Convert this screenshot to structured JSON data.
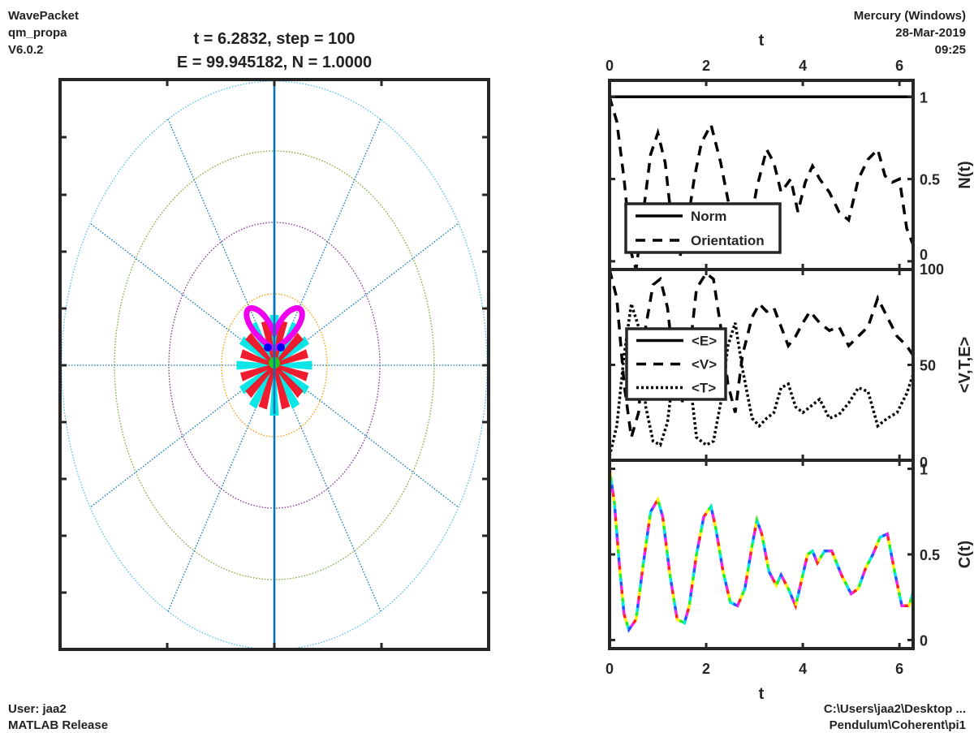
{
  "header": {
    "left": [
      "WavePacket",
      "qm_propa",
      "V6.0.2"
    ],
    "right": [
      "Mercury (Windows)",
      "28-Mar-2019",
      "09:25"
    ],
    "title_line1": "t = 6.2832, step = 100",
    "title_line2": "E = 99.945182, N = 1.0000"
  },
  "footer": {
    "left": [
      "User: jaa2",
      "MATLAB Release"
    ],
    "right": [
      "C:\\Users\\jaa2\\Desktop ...",
      "Pendulum\\Coherent\\pi1"
    ]
  },
  "colors": {
    "ring1": "#ff9900",
    "ring2": "#7e2f8e",
    "ring3": "#77ac30",
    "ring4": "#4dbeee",
    "spokes": "#0072bd",
    "axis_line": "#0072bd",
    "petal_magenta": "#ee00ee",
    "petal_blue": "#0000ee",
    "petal_red": "#ee1122",
    "petal_cyan": "#00e5e5",
    "petal_green": "#22cc22",
    "black": "#000000"
  },
  "chart_data": [
    {
      "type": "polar",
      "description_rings": 4,
      "spokes_deg": [
        0,
        30,
        60,
        90,
        120,
        150,
        180,
        210,
        240,
        270,
        300,
        330
      ],
      "petals": [
        {
          "color": "magenta",
          "angle_deg": [
            60,
            120
          ]
        },
        {
          "color": "red",
          "angle_deg": [
            15,
            40,
            75,
            105,
            140,
            165,
            195,
            220,
            250,
            290,
            320,
            345
          ]
        },
        {
          "color": "cyan",
          "angle_deg": [
            0,
            30,
            55,
            90,
            125,
            150,
            180,
            210,
            235,
            270,
            305,
            330
          ]
        }
      ]
    },
    {
      "type": "line",
      "panel": "norm",
      "xlabel": "t",
      "ylabel": "N(t)",
      "xlim": [
        0,
        6.2832
      ],
      "ylim": [
        -0.05,
        1.1
      ],
      "xticks": [
        0,
        2,
        4,
        6
      ],
      "yticks": [
        0,
        0.5,
        1
      ],
      "series": [
        {
          "name": "Norm",
          "style": "solid",
          "x": [
            0,
            6.2832
          ],
          "y": [
            1.0,
            1.0
          ]
        },
        {
          "name": "Orientation",
          "style": "dashed",
          "x": [
            0,
            0.15,
            0.3,
            0.45,
            0.55,
            0.7,
            0.85,
            1.0,
            1.15,
            1.3,
            1.45,
            1.6,
            1.75,
            1.9,
            2.1,
            2.3,
            2.5,
            2.7,
            2.9,
            3.05,
            3.25,
            3.4,
            3.55,
            3.75,
            3.9,
            4.05,
            4.2,
            4.35,
            4.55,
            4.75,
            4.95,
            5.15,
            5.35,
            5.55,
            5.7,
            5.85,
            6.0,
            6.15,
            6.2832
          ],
          "y": [
            1.0,
            0.85,
            0.5,
            0.05,
            -0.05,
            0.3,
            0.65,
            0.78,
            0.6,
            0.2,
            0.02,
            0.2,
            0.5,
            0.72,
            0.83,
            0.6,
            0.3,
            0.05,
            0.2,
            0.45,
            0.68,
            0.6,
            0.42,
            0.5,
            0.3,
            0.48,
            0.58,
            0.5,
            0.42,
            0.3,
            0.25,
            0.5,
            0.62,
            0.68,
            0.52,
            0.48,
            0.5,
            0.2,
            0.1
          ]
        }
      ],
      "legend": {
        "placement": "lower-left",
        "entries": [
          "Norm",
          "Orientation"
        ]
      }
    },
    {
      "type": "line",
      "panel": "energy",
      "xlabel": "t",
      "ylabel": "<V,T,E>",
      "xlim": [
        0,
        6.2832
      ],
      "ylim": [
        0,
        100
      ],
      "xticks": [
        0,
        2,
        4,
        6
      ],
      "yticks": [
        0,
        50,
        100
      ],
      "series": [
        {
          "name": "<E>",
          "style": "solid",
          "x": [
            0,
            6.2832
          ],
          "y": [
            99.95,
            99.95
          ]
        },
        {
          "name": "<V>",
          "style": "dashed",
          "x": [
            0,
            0.15,
            0.3,
            0.45,
            0.6,
            0.75,
            0.9,
            1.05,
            1.2,
            1.35,
            1.5,
            1.65,
            1.8,
            2.0,
            2.15,
            2.3,
            2.45,
            2.6,
            2.75,
            2.95,
            3.1,
            3.25,
            3.4,
            3.55,
            3.7,
            3.85,
            4.0,
            4.15,
            4.35,
            4.55,
            4.75,
            4.95,
            5.15,
            5.35,
            5.55,
            5.75,
            5.95,
            6.15,
            6.2832
          ],
          "y": [
            100,
            85,
            40,
            12,
            25,
            70,
            92,
            95,
            80,
            45,
            30,
            55,
            90,
            98,
            95,
            70,
            40,
            25,
            55,
            75,
            82,
            78,
            80,
            70,
            60,
            65,
            72,
            78,
            72,
            68,
            70,
            60,
            65,
            70,
            85,
            75,
            65,
            60,
            55
          ]
        },
        {
          "name": "<T>",
          "style": "dotted",
          "x": [
            0,
            0.15,
            0.3,
            0.45,
            0.6,
            0.75,
            0.9,
            1.05,
            1.2,
            1.35,
            1.5,
            1.65,
            1.8,
            2.0,
            2.15,
            2.3,
            2.45,
            2.6,
            2.75,
            2.95,
            3.1,
            3.25,
            3.4,
            3.55,
            3.7,
            3.85,
            4.0,
            4.15,
            4.35,
            4.55,
            4.75,
            4.95,
            5.15,
            5.35,
            5.55,
            5.75,
            5.95,
            6.15,
            6.2832
          ],
          "y": [
            2,
            18,
            55,
            82,
            70,
            28,
            10,
            8,
            20,
            52,
            68,
            45,
            12,
            8,
            10,
            30,
            60,
            72,
            48,
            22,
            18,
            22,
            25,
            38,
            40,
            28,
            25,
            28,
            32,
            22,
            24,
            30,
            38,
            36,
            18,
            22,
            25,
            35,
            45
          ]
        }
      ],
      "legend": {
        "placement": "upper-left",
        "entries": [
          "<E>",
          "<V>",
          "<T>"
        ]
      }
    },
    {
      "type": "line",
      "panel": "correlation",
      "xlabel": "t",
      "ylabel": "C(t)",
      "xlim": [
        0,
        6.2832
      ],
      "ylim": [
        -0.05,
        1.05
      ],
      "xticks": [
        0,
        2,
        4,
        6
      ],
      "yticks": [
        0,
        0.5,
        1
      ],
      "series": [
        {
          "style": "multicolor",
          "x": [
            0,
            0.1,
            0.2,
            0.3,
            0.4,
            0.55,
            0.7,
            0.85,
            1.0,
            1.1,
            1.25,
            1.4,
            1.55,
            1.65,
            1.8,
            1.95,
            2.1,
            2.2,
            2.35,
            2.5,
            2.65,
            2.8,
            2.95,
            3.05,
            3.15,
            3.3,
            3.45,
            3.55,
            3.7,
            3.85,
            4.0,
            4.1,
            4.2,
            4.3,
            4.45,
            4.6,
            4.8,
            5.0,
            5.15,
            5.3,
            5.45,
            5.6,
            5.75,
            5.9,
            6.05,
            6.2,
            6.2832
          ],
          "y": [
            1.0,
            0.8,
            0.45,
            0.15,
            0.06,
            0.12,
            0.45,
            0.75,
            0.82,
            0.72,
            0.38,
            0.12,
            0.1,
            0.2,
            0.5,
            0.72,
            0.78,
            0.65,
            0.4,
            0.22,
            0.2,
            0.3,
            0.55,
            0.7,
            0.62,
            0.4,
            0.32,
            0.38,
            0.3,
            0.2,
            0.38,
            0.5,
            0.52,
            0.45,
            0.52,
            0.52,
            0.38,
            0.27,
            0.3,
            0.42,
            0.5,
            0.6,
            0.62,
            0.4,
            0.2,
            0.2,
            0.28
          ]
        }
      ]
    }
  ]
}
